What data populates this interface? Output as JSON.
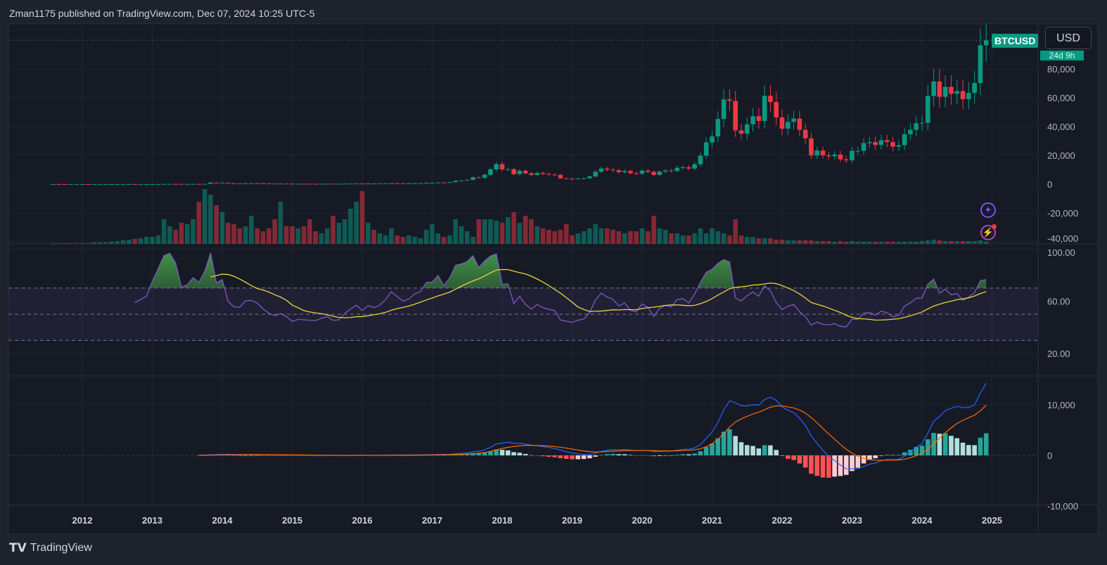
{
  "header": {
    "published_text": "Zman1175 published on TradingView.com, Dec 07, 2024 10:25 UTC-5"
  },
  "symbol": {
    "ticker": "BTCUSD",
    "currency": "USD",
    "countdown": "24d 9h",
    "up_color": "#089981",
    "down_color": "#f23645"
  },
  "price_axis": {
    "labels": [
      "80,000",
      "60,000",
      "40,000",
      "20,000",
      "0",
      "-20,000",
      "-40,000"
    ],
    "values": [
      80000,
      60000,
      40000,
      20000,
      0,
      -20000,
      -40000
    ]
  },
  "rsi_axis": {
    "labels": [
      "100.00",
      "60.00",
      "20.00"
    ],
    "values": [
      100,
      60,
      20
    ],
    "upper_band": 70,
    "middle_band": 50,
    "lower_band": 30,
    "line_color": "#7e57c2",
    "ma_color": "#e6d63a"
  },
  "macd_axis": {
    "labels": [
      "10,000",
      "0",
      "-10,000"
    ],
    "values": [
      10000,
      0,
      -10000
    ],
    "macd_color": "#2962ff",
    "signal_color": "#ff6d00"
  },
  "time_axis": {
    "labels": [
      "2012",
      "2013",
      "2014",
      "2015",
      "2016",
      "2017",
      "2018",
      "2019",
      "2020",
      "2021",
      "2022",
      "2023",
      "2024",
      "2025"
    ]
  },
  "icons": {
    "assistant": "sparkle-icon",
    "alerts": "lightning-icon"
  },
  "footer": {
    "logo_text": "TradingView"
  },
  "chart_data": {
    "type": "candlestick",
    "interval": "1M",
    "start_month": "2011-08",
    "closes": [
      8,
      5,
      3,
      3,
      5,
      6,
      5,
      5,
      5,
      5,
      7,
      9,
      10,
      12,
      11,
      12,
      13,
      20,
      33,
      93,
      139,
      129,
      97,
      106,
      141,
      133,
      211,
      1129,
      805,
      938,
      573,
      457,
      447,
      628,
      640,
      589,
      478,
      387,
      338,
      378,
      320,
      217,
      254,
      244,
      236,
      230,
      263,
      284,
      230,
      236,
      314,
      377,
      430,
      369,
      437,
      416,
      448,
      531,
      673,
      624,
      575,
      609,
      700,
      745,
      964,
      970,
      1190,
      1080,
      1350,
      2300,
      2480,
      2880,
      4740,
      4340,
      6470,
      10230,
      13860,
      10220,
      10330,
      6930,
      9240,
      7490,
      6400,
      7730,
      7030,
      6630,
      6370,
      4040,
      3740,
      3460,
      3850,
      4100,
      5350,
      8570,
      10820,
      10080,
      9630,
      8300,
      9150,
      7570,
      7190,
      9350,
      8540,
      6420,
      8630,
      9450,
      9140,
      11350,
      11680,
      10780,
      13800,
      19700,
      29000,
      33100,
      45200,
      58800,
      57800,
      37300,
      35000,
      41500,
      47100,
      43800,
      61300,
      57000,
      46300,
      38500,
      43200,
      45500,
      37700,
      31800,
      19900,
      23300,
      20000,
      19400,
      20500,
      17200,
      16500,
      23100,
      23100,
      28500,
      29200,
      27200,
      30500,
      29200,
      26000,
      27000,
      34600,
      37700,
      42300,
      42600,
      61200,
      71300,
      60600,
      67500,
      62700,
      64600,
      58900,
      63300,
      70200,
      96400,
      99800
    ],
    "volume_relative": [
      1,
      1,
      1,
      1,
      1,
      1,
      1,
      2,
      2,
      2,
      3,
      4,
      5,
      6,
      7,
      8,
      10,
      10,
      12,
      35,
      25,
      20,
      30,
      28,
      35,
      60,
      78,
      70,
      55,
      45,
      30,
      28,
      22,
      25,
      40,
      22,
      18,
      22,
      35,
      60,
      25,
      25,
      22,
      25,
      35,
      18,
      15,
      22,
      40,
      30,
      35,
      50,
      60,
      75,
      30,
      20,
      15,
      12,
      22,
      12,
      10,
      12,
      10,
      8,
      20,
      28,
      15,
      10,
      12,
      35,
      25,
      18,
      10,
      35,
      35,
      35,
      33,
      30,
      38,
      45,
      30,
      40,
      35,
      25,
      22,
      20,
      18,
      20,
      28,
      12,
      15,
      18,
      22,
      28,
      22,
      22,
      20,
      18,
      15,
      18,
      18,
      22,
      18,
      40,
      22,
      20,
      15,
      15,
      12,
      12,
      15,
      22,
      15,
      22,
      18,
      15,
      12,
      35,
      12,
      10,
      10,
      8,
      8,
      8,
      6,
      6,
      5,
      5,
      5,
      5,
      5,
      4,
      4,
      4,
      3,
      4,
      3,
      4,
      3,
      3,
      3,
      3,
      3,
      3,
      3,
      3,
      3,
      3,
      3,
      4,
      5,
      6,
      5,
      4,
      4,
      4,
      4,
      4,
      4,
      5,
      3
    ],
    "indicators": [
      {
        "name": "RSI",
        "length": 14,
        "ma_length": 14
      },
      {
        "name": "MACD",
        "fast": 12,
        "slow": 26,
        "signal": 9
      }
    ]
  }
}
